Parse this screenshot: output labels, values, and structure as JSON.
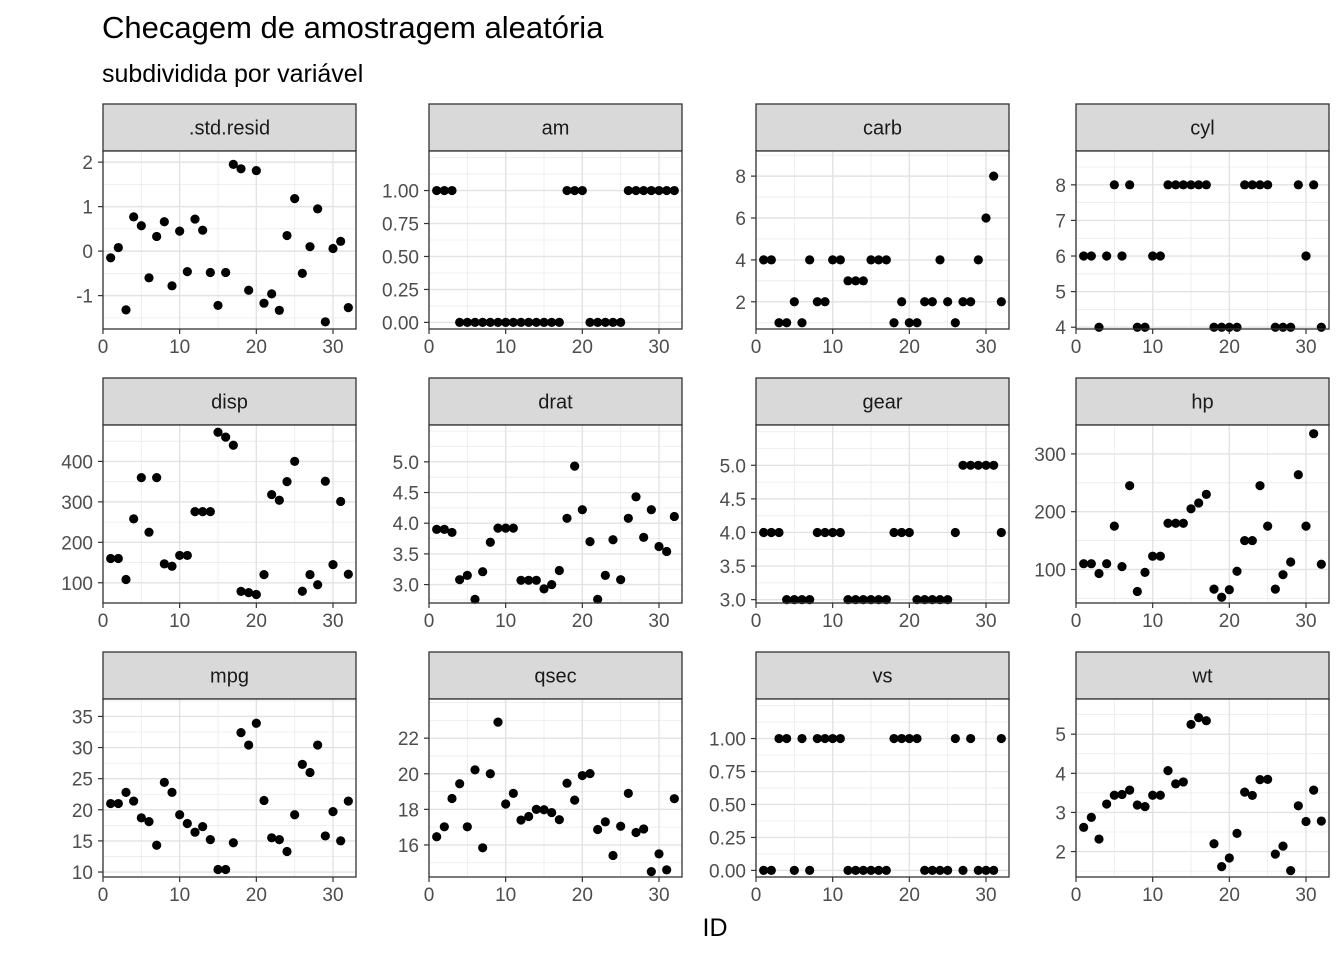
{
  "chart_data": {
    "type": "scatter",
    "title": "Checagem de amostragem aleatória",
    "subtitle": "subdividida por variável",
    "xlabel": "ID",
    "ylabel": "",
    "grid": true,
    "x": [
      1,
      2,
      3,
      4,
      5,
      6,
      7,
      8,
      9,
      10,
      11,
      12,
      13,
      14,
      15,
      16,
      17,
      18,
      19,
      20,
      21,
      22,
      23,
      24,
      25,
      26,
      27,
      28,
      29,
      30,
      31,
      32
    ],
    "panels": [
      {
        "name": ".std.resid",
        "xlim": [
          0,
          33
        ],
        "ylim": [
          -1.75,
          2.25
        ],
        "xticks": [
          0,
          10,
          20,
          30
        ],
        "yticks": [
          -1,
          0,
          1,
          2
        ],
        "ytick_labels": [
          "-1",
          "0",
          "1",
          "2"
        ],
        "y": [
          -0.15,
          0.08,
          -1.32,
          0.77,
          0.57,
          -0.6,
          0.33,
          0.66,
          -0.78,
          0.45,
          -0.46,
          0.72,
          0.47,
          -0.48,
          -1.22,
          -0.48,
          1.95,
          1.85,
          -0.88,
          1.81,
          -1.17,
          -0.96,
          -1.33,
          0.35,
          1.18,
          -0.5,
          0.1,
          0.95,
          -1.59,
          0.06,
          0.22,
          -1.27
        ]
      },
      {
        "name": "am",
        "xlim": [
          0,
          33
        ],
        "ylim": [
          -0.05,
          1.3
        ],
        "xticks": [
          0,
          10,
          20,
          30
        ],
        "yticks": [
          0,
          0.25,
          0.5,
          0.75,
          1
        ],
        "ytick_labels": [
          "0.00",
          "0.25",
          "0.50",
          "0.75",
          "1.00"
        ],
        "y": [
          1,
          1,
          1,
          0,
          0,
          0,
          0,
          0,
          0,
          0,
          0,
          0,
          0,
          0,
          0,
          0,
          0,
          1,
          1,
          1,
          0,
          0,
          0,
          0,
          0,
          1,
          1,
          1,
          1,
          1,
          1,
          1
        ]
      },
      {
        "name": "carb",
        "xlim": [
          0,
          33
        ],
        "ylim": [
          0.7,
          9.2
        ],
        "xticks": [
          0,
          10,
          20,
          30
        ],
        "yticks": [
          2,
          4,
          6,
          8
        ],
        "ytick_labels": [
          "2",
          "4",
          "6",
          "8"
        ],
        "y": [
          4,
          4,
          1,
          1,
          2,
          1,
          4,
          2,
          2,
          4,
          4,
          3,
          3,
          3,
          4,
          4,
          4,
          1,
          2,
          1,
          1,
          2,
          2,
          4,
          2,
          1,
          2,
          2,
          4,
          6,
          8,
          2
        ]
      },
      {
        "name": "cyl",
        "xlim": [
          0,
          33
        ],
        "ylim": [
          3.95,
          8.95
        ],
        "xticks": [
          0,
          10,
          20,
          30
        ],
        "yticks": [
          4,
          5,
          6,
          7,
          8
        ],
        "ytick_labels": [
          "4",
          "5",
          "6",
          "7",
          "8"
        ],
        "y": [
          6,
          6,
          4,
          6,
          8,
          6,
          8,
          4,
          4,
          6,
          6,
          8,
          8,
          8,
          8,
          8,
          8,
          4,
          4,
          4,
          4,
          8,
          8,
          8,
          8,
          4,
          4,
          4,
          8,
          6,
          8,
          4
        ]
      },
      {
        "name": "disp",
        "xlim": [
          0,
          33
        ],
        "ylim": [
          50,
          490
        ],
        "xticks": [
          0,
          10,
          20,
          30
        ],
        "yticks": [
          100,
          200,
          300,
          400
        ],
        "ytick_labels": [
          "100",
          "200",
          "300",
          "400"
        ],
        "y": [
          160,
          160,
          108,
          258,
          360,
          225,
          360,
          146.7,
          140.8,
          167.6,
          167.6,
          275.8,
          275.8,
          275.8,
          472,
          460,
          440,
          78.7,
          75.7,
          71.1,
          120.1,
          318,
          304,
          350,
          400,
          79,
          120.3,
          95.1,
          351,
          145,
          301,
          121
        ]
      },
      {
        "name": "drat",
        "xlim": [
          0,
          33
        ],
        "ylim": [
          2.7,
          5.6
        ],
        "xticks": [
          0,
          10,
          20,
          30
        ],
        "yticks": [
          3,
          3.5,
          4,
          4.5,
          5
        ],
        "ytick_labels": [
          "3.0",
          "3.5",
          "4.0",
          "4.5",
          "5.0"
        ],
        "y": [
          3.9,
          3.9,
          3.85,
          3.08,
          3.15,
          2.76,
          3.21,
          3.69,
          3.92,
          3.92,
          3.92,
          3.07,
          3.07,
          3.07,
          2.93,
          3,
          3.23,
          4.08,
          4.93,
          4.22,
          3.7,
          2.76,
          3.15,
          3.73,
          3.08,
          4.08,
          4.43,
          3.77,
          4.22,
          3.62,
          3.54,
          4.11
        ]
      },
      {
        "name": "gear",
        "xlim": [
          0,
          33
        ],
        "ylim": [
          2.95,
          5.6
        ],
        "xticks": [
          0,
          10,
          20,
          30
        ],
        "yticks": [
          3,
          3.5,
          4,
          4.5,
          5
        ],
        "ytick_labels": [
          "3.0",
          "3.5",
          "4.0",
          "4.5",
          "5.0"
        ],
        "y": [
          4,
          4,
          4,
          3,
          3,
          3,
          3,
          4,
          4,
          4,
          4,
          3,
          3,
          3,
          3,
          3,
          3,
          4,
          4,
          4,
          3,
          3,
          3,
          3,
          3,
          4,
          5,
          5,
          5,
          5,
          5,
          4
        ]
      },
      {
        "name": "hp",
        "xlim": [
          0,
          33
        ],
        "ylim": [
          42,
          350
        ],
        "xticks": [
          0,
          10,
          20,
          30
        ],
        "yticks": [
          100,
          200,
          300
        ],
        "ytick_labels": [
          "100",
          "200",
          "300"
        ],
        "y": [
          110,
          110,
          93,
          110,
          175,
          105,
          245,
          62,
          95,
          123,
          123,
          180,
          180,
          180,
          205,
          215,
          230,
          66,
          52,
          65,
          97,
          150,
          150,
          245,
          175,
          66,
          91,
          113,
          264,
          175,
          335,
          109
        ]
      },
      {
        "name": "mpg",
        "xlim": [
          0,
          33
        ],
        "ylim": [
          9.2,
          37.8
        ],
        "xticks": [
          0,
          10,
          20,
          30
        ],
        "yticks": [
          10,
          15,
          20,
          25,
          30,
          35
        ],
        "ytick_labels": [
          "10",
          "15",
          "20",
          "25",
          "30",
          "35"
        ],
        "y": [
          21,
          21,
          22.8,
          21.4,
          18.7,
          18.1,
          14.3,
          24.4,
          22.8,
          19.2,
          17.8,
          16.4,
          17.3,
          15.2,
          10.4,
          10.4,
          14.7,
          32.4,
          30.4,
          33.9,
          21.5,
          15.5,
          15.2,
          13.3,
          19.2,
          27.3,
          26,
          30.4,
          15.8,
          19.7,
          15,
          21.4
        ]
      },
      {
        "name": "qsec",
        "xlim": [
          0,
          33
        ],
        "ylim": [
          14.2,
          24.2
        ],
        "xticks": [
          0,
          10,
          20,
          30
        ],
        "yticks": [
          16,
          18,
          20,
          22
        ],
        "ytick_labels": [
          "16",
          "18",
          "20",
          "22"
        ],
        "y": [
          16.46,
          17.02,
          18.61,
          19.44,
          17.02,
          20.22,
          15.84,
          20,
          22.9,
          18.3,
          18.9,
          17.4,
          17.6,
          18,
          17.98,
          17.82,
          17.42,
          19.47,
          18.52,
          19.9,
          20.01,
          16.87,
          17.3,
          15.41,
          17.05,
          18.9,
          16.7,
          16.9,
          14.5,
          15.5,
          14.6,
          18.6
        ]
      },
      {
        "name": "vs",
        "xlim": [
          0,
          33
        ],
        "ylim": [
          -0.05,
          1.3
        ],
        "xticks": [
          0,
          10,
          20,
          30
        ],
        "yticks": [
          0,
          0.25,
          0.5,
          0.75,
          1
        ],
        "ytick_labels": [
          "0.00",
          "0.25",
          "0.50",
          "0.75",
          "1.00"
        ],
        "y": [
          0,
          0,
          1,
          1,
          0,
          1,
          0,
          1,
          1,
          1,
          1,
          0,
          0,
          0,
          0,
          0,
          0,
          1,
          1,
          1,
          1,
          0,
          0,
          0,
          0,
          1,
          0,
          1,
          0,
          0,
          0,
          1
        ]
      },
      {
        "name": "wt",
        "xlim": [
          0,
          33
        ],
        "ylim": [
          1.35,
          5.9
        ],
        "xticks": [
          0,
          10,
          20,
          30
        ],
        "yticks": [
          2,
          3,
          4,
          5
        ],
        "ytick_labels": [
          "2",
          "3",
          "4",
          "5"
        ],
        "y": [
          2.62,
          2.875,
          2.32,
          3.215,
          3.44,
          3.46,
          3.57,
          3.19,
          3.15,
          3.44,
          3.44,
          4.07,
          3.73,
          3.78,
          5.25,
          5.424,
          5.345,
          2.2,
          1.615,
          1.835,
          2.465,
          3.52,
          3.435,
          3.84,
          3.845,
          1.935,
          2.14,
          1.513,
          3.17,
          2.77,
          3.57,
          2.78
        ]
      }
    ]
  }
}
